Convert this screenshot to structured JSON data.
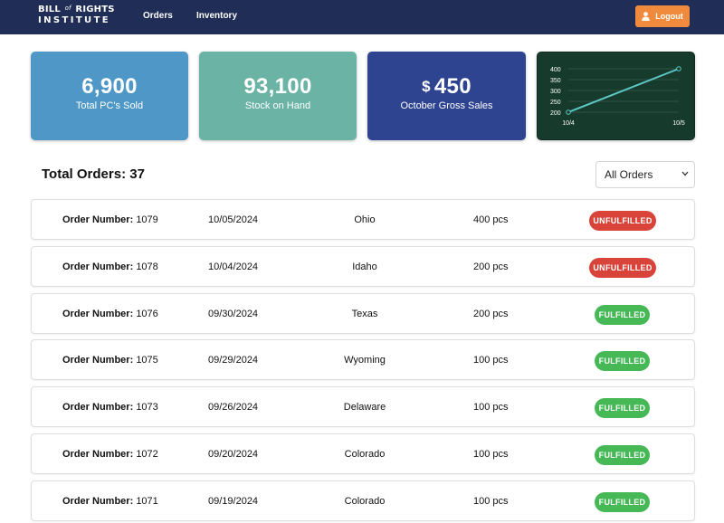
{
  "navbar": {
    "logo_line1_a": "BILL",
    "logo_line1_of": "of",
    "logo_line1_b": "RIGHTS",
    "logo_line2": "INSTITUTE",
    "links": [
      "Orders",
      "Inventory"
    ],
    "logout_label": "Logout",
    "logout_icon": "user-icon",
    "logout_color": "#f08a3c",
    "bg_color": "#1f2d57"
  },
  "stats": [
    {
      "value": "6,900",
      "label": "Total PC's Sold",
      "color": "#4e97c6"
    },
    {
      "value": "93,100",
      "label": "Stock on Hand",
      "color": "#6ab3a5"
    },
    {
      "currency": "$",
      "value": "450",
      "label": "October Gross Sales",
      "color": "#2f4490"
    }
  ],
  "chart_data": {
    "type": "line",
    "x": [
      "10/4",
      "10/5"
    ],
    "y_ticks": [
      "400",
      "350",
      "300",
      "250",
      "200"
    ],
    "ylim": [
      200,
      400
    ],
    "series": [
      {
        "values": [
          200,
          400
        ]
      }
    ],
    "grid": true,
    "bg_color": "#163a2b",
    "line_color": "#5cc6c4"
  },
  "orders": {
    "title": "Total Orders: 37",
    "filter_value": "All Orders",
    "number_label": "Order Number:",
    "rows": [
      {
        "number": "1079",
        "date": "10/05/2024",
        "state": "Ohio",
        "qty": "400 pcs",
        "status": "UNFULFILLED"
      },
      {
        "number": "1078",
        "date": "10/04/2024",
        "state": "Idaho",
        "qty": "200 pcs",
        "status": "UNFULFILLED"
      },
      {
        "number": "1076",
        "date": "09/30/2024",
        "state": "Texas",
        "qty": "200 pcs",
        "status": "FULFILLED"
      },
      {
        "number": "1075",
        "date": "09/29/2024",
        "state": "Wyoming",
        "qty": "100 pcs",
        "status": "FULFILLED"
      },
      {
        "number": "1073",
        "date": "09/26/2024",
        "state": "Delaware",
        "qty": "100 pcs",
        "status": "FULFILLED"
      },
      {
        "number": "1072",
        "date": "09/20/2024",
        "state": "Colorado",
        "qty": "100 pcs",
        "status": "FULFILLED"
      },
      {
        "number": "1071",
        "date": "09/19/2024",
        "state": "Colorado",
        "qty": "100 pcs",
        "status": "FULFILLED"
      }
    ],
    "status_colors": {
      "UNFULFILLED": "#d9443a",
      "FULFILLED": "#46b856"
    }
  }
}
